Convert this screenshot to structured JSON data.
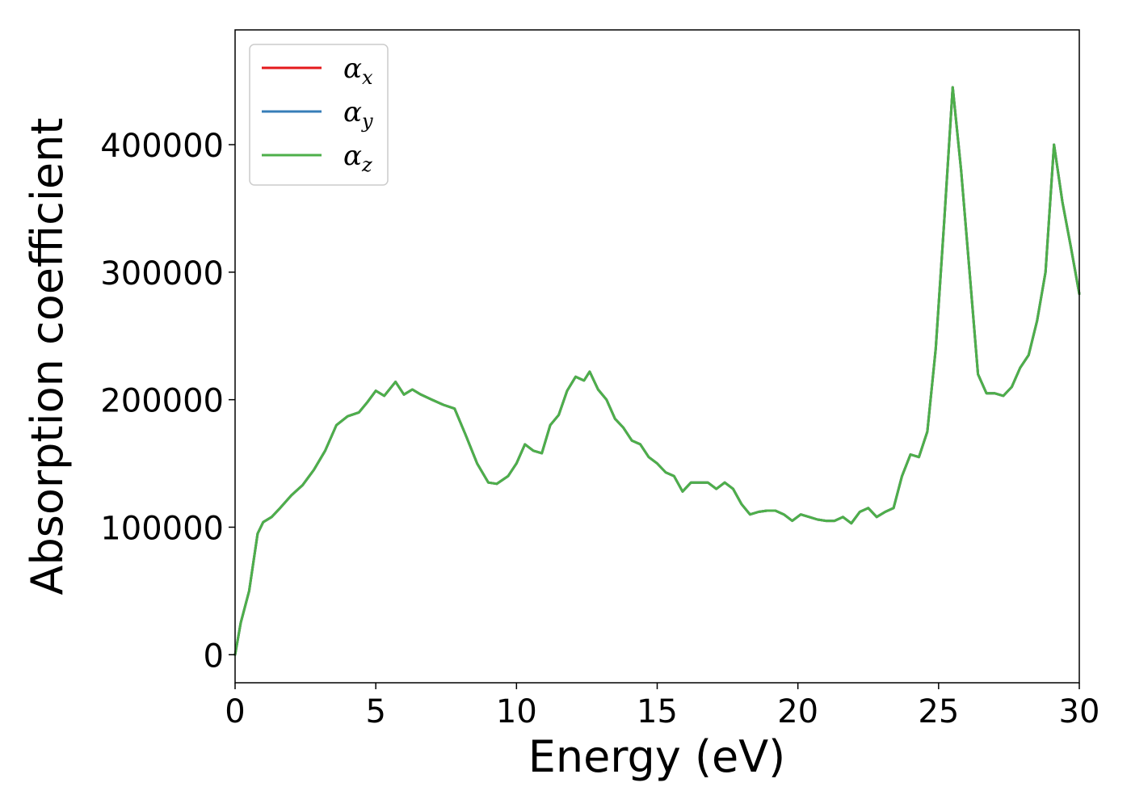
{
  "chart_data": {
    "type": "line",
    "title": "",
    "xlabel": "Energy (eV)",
    "ylabel": "Absorption coefficient",
    "xlim": [
      0,
      30
    ],
    "ylim": [
      -22000,
      490000
    ],
    "xticks": [
      0,
      5,
      10,
      15,
      20,
      25,
      30
    ],
    "yticks": [
      0,
      100000,
      200000,
      300000,
      400000
    ],
    "grid": false,
    "legend_position": "top-left",
    "x": [
      0,
      0.2,
      0.5,
      0.8,
      1.0,
      1.3,
      1.6,
      2.0,
      2.4,
      2.8,
      3.2,
      3.6,
      4.0,
      4.4,
      4.7,
      5.0,
      5.3,
      5.7,
      6.0,
      6.3,
      6.6,
      7.0,
      7.4,
      7.8,
      8.2,
      8.6,
      9.0,
      9.3,
      9.7,
      10.0,
      10.3,
      10.6,
      10.9,
      11.2,
      11.5,
      11.8,
      12.1,
      12.4,
      12.6,
      12.9,
      13.2,
      13.5,
      13.8,
      14.1,
      14.4,
      14.7,
      15.0,
      15.3,
      15.6,
      15.9,
      16.2,
      16.5,
      16.8,
      17.1,
      17.4,
      17.7,
      18.0,
      18.3,
      18.6,
      18.9,
      19.2,
      19.5,
      19.8,
      20.1,
      20.4,
      20.7,
      21.0,
      21.3,
      21.6,
      21.9,
      22.2,
      22.5,
      22.8,
      23.1,
      23.4,
      23.7,
      24.0,
      24.3,
      24.6,
      24.9,
      25.2,
      25.5,
      25.8,
      26.1,
      26.4,
      26.7,
      27.0,
      27.3,
      27.6,
      27.9,
      28.2,
      28.5,
      28.8,
      29.1,
      29.4,
      29.7,
      30.0
    ],
    "series": [
      {
        "name": "α_x",
        "color": "#e41a1c",
        "values": [
          0,
          25000,
          50000,
          95000,
          104000,
          108000,
          115000,
          125000,
          133000,
          145000,
          160000,
          180000,
          187000,
          190000,
          198000,
          207000,
          203000,
          214000,
          204000,
          208000,
          204000,
          200000,
          196000,
          193000,
          172000,
          150000,
          135000,
          134000,
          140000,
          150000,
          165000,
          160000,
          158000,
          180000,
          188000,
          207000,
          218000,
          215000,
          222000,
          208000,
          200000,
          185000,
          178000,
          168000,
          165000,
          155000,
          150000,
          143000,
          140000,
          128000,
          135000,
          135000,
          135000,
          130000,
          135000,
          130000,
          118000,
          110000,
          112000,
          113000,
          113000,
          110000,
          105000,
          110000,
          108000,
          106000,
          105000,
          105000,
          108000,
          103000,
          112000,
          115000,
          108000,
          112000,
          115000,
          140000,
          157000,
          155000,
          175000,
          240000,
          340000,
          445000,
          380000,
          300000,
          220000,
          205000,
          205000,
          203000,
          210000,
          225000,
          235000,
          262000,
          300000,
          400000,
          355000,
          320000,
          283000
        ]
      },
      {
        "name": "α_y",
        "color": "#377eb8",
        "values": [
          0,
          25000,
          50000,
          95000,
          104000,
          108000,
          115000,
          125000,
          133000,
          145000,
          160000,
          180000,
          187000,
          190000,
          198000,
          207000,
          203000,
          214000,
          204000,
          208000,
          204000,
          200000,
          196000,
          193000,
          172000,
          150000,
          135000,
          134000,
          140000,
          150000,
          165000,
          160000,
          158000,
          180000,
          188000,
          207000,
          218000,
          215000,
          222000,
          208000,
          200000,
          185000,
          178000,
          168000,
          165000,
          155000,
          150000,
          143000,
          140000,
          128000,
          135000,
          135000,
          135000,
          130000,
          135000,
          130000,
          118000,
          110000,
          112000,
          113000,
          113000,
          110000,
          105000,
          110000,
          108000,
          106000,
          105000,
          105000,
          108000,
          103000,
          112000,
          115000,
          108000,
          112000,
          115000,
          140000,
          157000,
          155000,
          175000,
          240000,
          340000,
          445000,
          380000,
          300000,
          220000,
          205000,
          205000,
          203000,
          210000,
          225000,
          235000,
          262000,
          300000,
          400000,
          355000,
          320000,
          283000
        ]
      },
      {
        "name": "α_z",
        "color": "#4daf4a",
        "values": [
          0,
          25000,
          50000,
          95000,
          104000,
          108000,
          115000,
          125000,
          133000,
          145000,
          160000,
          180000,
          187000,
          190000,
          198000,
          207000,
          203000,
          214000,
          204000,
          208000,
          204000,
          200000,
          196000,
          193000,
          172000,
          150000,
          135000,
          134000,
          140000,
          150000,
          165000,
          160000,
          158000,
          180000,
          188000,
          207000,
          218000,
          215000,
          222000,
          208000,
          200000,
          185000,
          178000,
          168000,
          165000,
          155000,
          150000,
          143000,
          140000,
          128000,
          135000,
          135000,
          135000,
          130000,
          135000,
          130000,
          118000,
          110000,
          112000,
          113000,
          113000,
          110000,
          105000,
          110000,
          108000,
          106000,
          105000,
          105000,
          108000,
          103000,
          112000,
          115000,
          108000,
          112000,
          115000,
          140000,
          157000,
          155000,
          175000,
          240000,
          340000,
          445000,
          380000,
          300000,
          220000,
          205000,
          205000,
          203000,
          210000,
          225000,
          235000,
          262000,
          300000,
          400000,
          355000,
          320000,
          283000
        ]
      }
    ],
    "legend": [
      {
        "base": "α",
        "sub": "x"
      },
      {
        "base": "α",
        "sub": "y"
      },
      {
        "base": "α",
        "sub": "z"
      }
    ]
  }
}
